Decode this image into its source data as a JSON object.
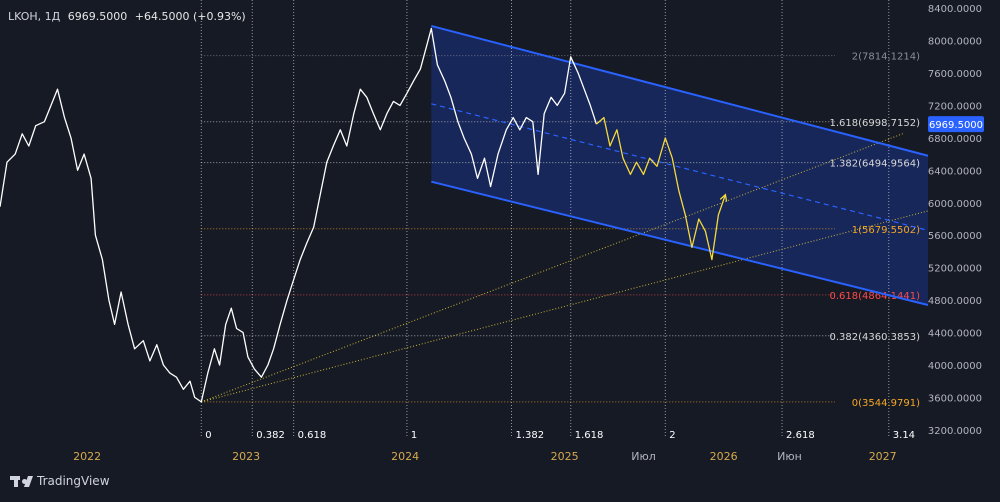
{
  "header": {
    "symbol": "LKOH, 1Д",
    "price": "6969.5000",
    "change": "+64.5000 (+0.93%)"
  },
  "brand": {
    "name": "TradingView",
    "icon": "tradingview-logo-icon"
  },
  "colors": {
    "background": "#161a25",
    "price_line": "#ffffff",
    "projection": "#f5d93b",
    "channel_line": "#2962ff",
    "channel_fill": "#1a2c6b",
    "fib_level": "#9598a1",
    "fib_level_0618": "#ff4a4a",
    "fib_level_1": "#f5a623",
    "current_price_badge": "#2962ff",
    "axis_text": "#b2b5be",
    "year_text": "#d6a84e"
  },
  "chart_data": {
    "type": "line",
    "title": "",
    "y_axis": {
      "min": 3100,
      "max": 8500,
      "ticks": [
        "8400.0000",
        "8000.0000",
        "7600.0000",
        "7200.0000",
        "6800.0000",
        "6400.0000",
        "6000.0000",
        "5600.0000",
        "5200.0000",
        "4800.0000",
        "4400.0000",
        "4000.0000",
        "3600.0000",
        "3200.0000"
      ]
    },
    "current_price": "6969.5000",
    "x_axis": {
      "range": [
        "2021-06-15",
        "2027-04-15"
      ],
      "labels": [
        {
          "text": "2022",
          "date": "2022-01-01",
          "kind": "year"
        },
        {
          "text": "2023",
          "date": "2023-01-01",
          "kind": "year"
        },
        {
          "text": "2024",
          "date": "2024-01-01",
          "kind": "year"
        },
        {
          "text": "2025",
          "date": "2025-01-01",
          "kind": "year"
        },
        {
          "text": "Июл",
          "date": "2025-07-01",
          "kind": "month"
        },
        {
          "text": "2026",
          "date": "2026-01-01",
          "kind": "year"
        },
        {
          "text": "Июн",
          "date": "2026-06-01",
          "kind": "month"
        },
        {
          "text": "2027",
          "date": "2027-01-01",
          "kind": "year"
        }
      ]
    },
    "series": [
      {
        "kind": "history",
        "points": [
          [
            "2021-06-15",
            5950
          ],
          [
            "2021-07-01",
            6500
          ],
          [
            "2021-07-20",
            6600
          ],
          [
            "2021-08-05",
            6850
          ],
          [
            "2021-08-20",
            6700
          ],
          [
            "2021-09-05",
            6950
          ],
          [
            "2021-09-25",
            7000
          ],
          [
            "2021-10-10",
            7200
          ],
          [
            "2021-10-25",
            7400
          ],
          [
            "2021-11-10",
            7050
          ],
          [
            "2021-11-25",
            6800
          ],
          [
            "2021-12-10",
            6400
          ],
          [
            "2021-12-25",
            6600
          ],
          [
            "2022-01-10",
            6300
          ],
          [
            "2022-01-20",
            5600
          ],
          [
            "2022-02-05",
            5300
          ],
          [
            "2022-02-20",
            4800
          ],
          [
            "2022-03-05",
            4500
          ],
          [
            "2022-03-20",
            4900
          ],
          [
            "2022-04-05",
            4500
          ],
          [
            "2022-04-20",
            4200
          ],
          [
            "2022-05-10",
            4300
          ],
          [
            "2022-05-25",
            4050
          ],
          [
            "2022-06-10",
            4250
          ],
          [
            "2022-06-25",
            4000
          ],
          [
            "2022-07-10",
            3900
          ],
          [
            "2022-07-25",
            3850
          ],
          [
            "2022-08-10",
            3700
          ],
          [
            "2022-08-25",
            3800
          ],
          [
            "2022-09-05",
            3600
          ],
          [
            "2022-09-20",
            3544.98
          ],
          [
            "2022-10-05",
            3900
          ],
          [
            "2022-10-20",
            4200
          ],
          [
            "2022-11-01",
            4000
          ],
          [
            "2022-11-15",
            4500
          ],
          [
            "2022-11-28",
            4700
          ],
          [
            "2022-12-10",
            4450
          ],
          [
            "2022-12-25",
            4400
          ],
          [
            "2023-01-05",
            4100
          ],
          [
            "2023-01-20",
            3950
          ],
          [
            "2023-02-05",
            3850
          ],
          [
            "2023-02-20",
            4000
          ],
          [
            "2023-03-05",
            4200
          ],
          [
            "2023-03-20",
            4500
          ],
          [
            "2023-04-05",
            4800
          ],
          [
            "2023-04-20",
            5050
          ],
          [
            "2023-05-05",
            5300
          ],
          [
            "2023-05-20",
            5500
          ],
          [
            "2023-06-05",
            5700
          ],
          [
            "2023-06-20",
            6100
          ],
          [
            "2023-07-05",
            6500
          ],
          [
            "2023-07-20",
            6700
          ],
          [
            "2023-08-05",
            6900
          ],
          [
            "2023-08-20",
            6700
          ],
          [
            "2023-09-05",
            7100
          ],
          [
            "2023-09-20",
            7400
          ],
          [
            "2023-10-05",
            7300
          ],
          [
            "2023-10-20",
            7100
          ],
          [
            "2023-11-05",
            6900
          ],
          [
            "2023-11-20",
            7100
          ],
          [
            "2023-12-05",
            7250
          ],
          [
            "2023-12-20",
            7200
          ],
          [
            "2024-01-05",
            7350
          ],
          [
            "2024-01-20",
            7500
          ],
          [
            "2024-02-05",
            7650
          ],
          [
            "2024-02-20",
            7950
          ],
          [
            "2024-03-01",
            8150
          ],
          [
            "2024-03-15",
            7700
          ],
          [
            "2024-04-01",
            7500
          ],
          [
            "2024-04-15",
            7300
          ],
          [
            "2024-05-01",
            7000
          ],
          [
            "2024-05-15",
            6800
          ],
          [
            "2024-06-01",
            6600
          ],
          [
            "2024-06-15",
            6300
          ],
          [
            "2024-07-01",
            6550
          ],
          [
            "2024-07-15",
            6200
          ],
          [
            "2024-08-01",
            6600
          ],
          [
            "2024-08-20",
            6900
          ],
          [
            "2024-09-05",
            7050
          ],
          [
            "2024-09-20",
            6900
          ],
          [
            "2024-10-05",
            7050
          ],
          [
            "2024-10-20",
            7000
          ],
          [
            "2024-11-01",
            6350
          ],
          [
            "2024-11-15",
            7100
          ],
          [
            "2024-12-01",
            7300
          ],
          [
            "2024-12-15",
            7200
          ],
          [
            "2025-01-01",
            7350
          ],
          [
            "2025-01-15",
            7800
          ],
          [
            "2025-02-01",
            7600
          ],
          [
            "2025-02-15",
            7400
          ],
          [
            "2025-03-01",
            7200
          ],
          [
            "2025-03-15",
            6969.5
          ]
        ]
      },
      {
        "kind": "projection",
        "points": [
          [
            "2025-03-15",
            6969.5
          ],
          [
            "2025-04-01",
            7050
          ],
          [
            "2025-04-15",
            6700
          ],
          [
            "2025-05-01",
            6900
          ],
          [
            "2025-05-15",
            6550
          ],
          [
            "2025-06-01",
            6350
          ],
          [
            "2025-06-15",
            6500
          ],
          [
            "2025-07-01",
            6350
          ],
          [
            "2025-07-15",
            6550
          ],
          [
            "2025-08-01",
            6450
          ],
          [
            "2025-08-20",
            6800
          ],
          [
            "2025-09-05",
            6550
          ],
          [
            "2025-09-20",
            6150
          ],
          [
            "2025-10-05",
            5850
          ],
          [
            "2025-10-20",
            5450
          ],
          [
            "2025-11-05",
            5800
          ],
          [
            "2025-11-20",
            5650
          ],
          [
            "2025-12-05",
            5300
          ],
          [
            "2025-12-20",
            5850
          ],
          [
            "2026-01-05",
            6100
          ]
        ]
      }
    ],
    "channel": {
      "upper": [
        [
          "2024-03-01",
          8180
        ],
        [
          "2027-04-15",
          6580
        ]
      ],
      "lower": [
        [
          "2024-03-01",
          6260
        ],
        [
          "2027-04-15",
          4740
        ]
      ],
      "mid": [
        [
          "2024-03-01",
          7220
        ],
        [
          "2027-04-15",
          5660
        ]
      ]
    },
    "fan_lines": [
      {
        "from": [
          "2022-09-20",
          3544.98
        ],
        "to": [
          "2027-02-20",
          6860
        ]
      },
      {
        "from": [
          "2022-09-20",
          3544.98
        ],
        "to": [
          "2027-04-15",
          5900
        ]
      }
    ],
    "fib_levels": [
      {
        "label": "2(7814.1214)",
        "value": 7814.1214,
        "tone": "gray"
      },
      {
        "label": "1.618(6998.7152)",
        "value": 6998.7152,
        "tone": "white"
      },
      {
        "label": "1.382(6494.9564)",
        "value": 6494.9564,
        "tone": "white"
      },
      {
        "label": "1(5679.5502)",
        "value": 5679.5502,
        "tone": "orange"
      },
      {
        "label": "0.618(4864.1441)",
        "value": 4864.1441,
        "tone": "red"
      },
      {
        "label": "0.382(4360.3853)",
        "value": 4360.3853,
        "tone": "white"
      },
      {
        "label": "0(3544.9791)",
        "value": 3544.9791,
        "tone": "orange"
      }
    ],
    "time_fibs": [
      {
        "label": "0",
        "date": "2022-09-20"
      },
      {
        "label": "0.382",
        "date": "2023-01-15"
      },
      {
        "label": "0.618",
        "date": "2023-04-20"
      },
      {
        "label": "1",
        "date": "2024-01-05"
      },
      {
        "label": "1.382",
        "date": "2024-09-01"
      },
      {
        "label": "1.618",
        "date": "2025-01-15"
      },
      {
        "label": "2",
        "date": "2025-08-20"
      },
      {
        "label": "2.618",
        "date": "2026-05-15"
      },
      {
        "label": "3.14",
        "date": "2027-01-15"
      }
    ]
  }
}
